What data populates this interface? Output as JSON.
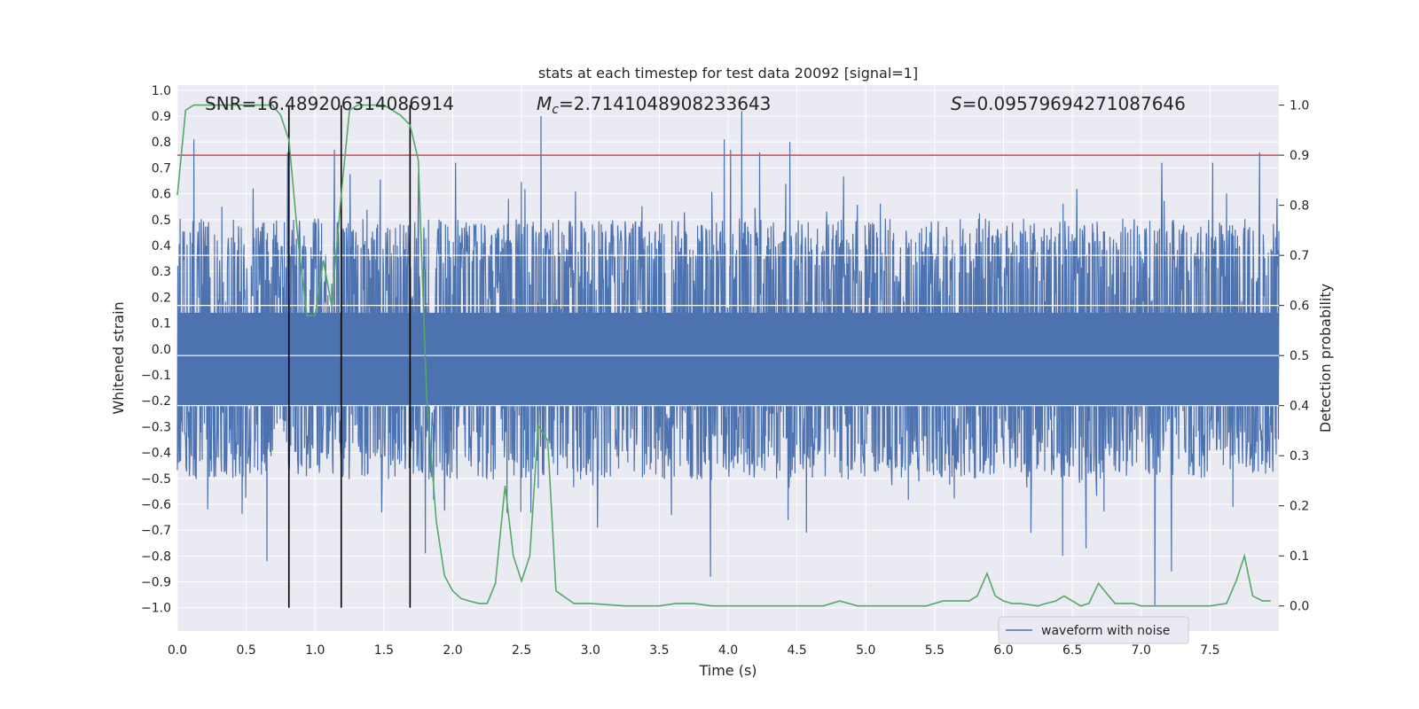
{
  "chart_data": {
    "type": "line",
    "title": "stats at each timestep for test data 20092 [signal=1]",
    "xlabel": "Time (s)",
    "ylabel": "Whitened strain",
    "ylabel_right": "Detection probability",
    "xlim": [
      0.0,
      8.0
    ],
    "ylim": [
      -1.09,
      1.02
    ],
    "ylim_right": [
      -0.05,
      1.04
    ],
    "x_ticks": [
      "0.0",
      "0.5",
      "1.0",
      "1.5",
      "2.0",
      "2.5",
      "3.0",
      "3.5",
      "4.0",
      "4.5",
      "5.0",
      "5.5",
      "6.0",
      "6.5",
      "7.0",
      "7.5"
    ],
    "y_ticks": [
      "1.0",
      "0.9",
      "0.8",
      "0.7",
      "0.6",
      "0.5",
      "0.4",
      "0.3",
      "0.2",
      "0.1",
      "0.0",
      "−0.1",
      "−0.2",
      "−0.3",
      "−0.4",
      "−0.5",
      "−0.6",
      "−0.7",
      "−0.8",
      "−0.9",
      "−1.0"
    ],
    "y_right_ticks": [
      "1.0",
      "0.9",
      "0.8",
      "0.7",
      "0.6",
      "0.5",
      "0.4",
      "0.3",
      "0.2",
      "0.1",
      "0.0"
    ],
    "annotations": {
      "snr": "SNR=16.489206314086914",
      "mc_symbol": "M",
      "mc_sub": "c",
      "mc_value": "=2.7141048908233643",
      "s_symbol": "S",
      "s_value": "=0.09579694271087646"
    },
    "legend": {
      "label": "waveform with noise",
      "loc": "lower-right"
    },
    "colors": {
      "waveform": "#4c72b0",
      "probability": "#55a868",
      "threshold": "#c44e52",
      "markers": "#000000",
      "background": "#eaeaf2",
      "grid": "#ffffff"
    },
    "threshold_right": 0.9,
    "vertical_markers_x": [
      0.81,
      1.19,
      1.69
    ],
    "waveform_seed": 20092,
    "waveform_envelope": {
      "typical_pos": 0.42,
      "typical_neg": -0.42
    },
    "waveform_spikes": [
      {
        "x": 0.12,
        "y": 0.81
      },
      {
        "x": 0.55,
        "y": 0.62
      },
      {
        "x": 0.65,
        "y": -0.82
      },
      {
        "x": 0.8,
        "y": 0.76
      },
      {
        "x": 1.14,
        "y": 0.77
      },
      {
        "x": 1.75,
        "y": 0.68
      },
      {
        "x": 1.8,
        "y": -0.79
      },
      {
        "x": 2.02,
        "y": 0.72
      },
      {
        "x": 2.64,
        "y": 0.9
      },
      {
        "x": 3.05,
        "y": -0.69
      },
      {
        "x": 3.87,
        "y": -0.88
      },
      {
        "x": 3.97,
        "y": 0.81
      },
      {
        "x": 4.1,
        "y": 0.92
      },
      {
        "x": 4.02,
        "y": 0.77
      },
      {
        "x": 4.23,
        "y": 0.76
      },
      {
        "x": 4.45,
        "y": 0.8
      },
      {
        "x": 4.57,
        "y": -0.71
      },
      {
        "x": 6.2,
        "y": -0.71
      },
      {
        "x": 6.43,
        "y": -0.8
      },
      {
        "x": 6.6,
        "y": -0.77
      },
      {
        "x": 7.1,
        "y": -0.99
      },
      {
        "x": 7.22,
        "y": -0.86
      },
      {
        "x": 7.15,
        "y": 0.72
      },
      {
        "x": 7.52,
        "y": 0.72
      },
      {
        "x": 7.86,
        "y": 0.76
      }
    ],
    "probability_x": [
      0.0,
      0.06,
      0.12,
      0.19,
      0.25,
      0.31,
      0.38,
      0.44,
      0.5,
      0.56,
      0.62,
      0.69,
      0.75,
      0.81,
      0.88,
      0.94,
      1.0,
      1.06,
      1.12,
      1.19,
      1.25,
      1.31,
      1.38,
      1.44,
      1.5,
      1.56,
      1.62,
      1.69,
      1.75,
      1.81,
      1.88,
      1.94,
      2.0,
      2.06,
      2.12,
      2.19,
      2.25,
      2.31,
      2.38,
      2.44,
      2.5,
      2.56,
      2.62,
      2.69,
      2.75,
      2.88,
      3.0,
      3.25,
      3.5,
      3.62,
      3.75,
      3.88,
      4.0,
      4.25,
      4.5,
      4.69,
      4.81,
      4.94,
      5.0,
      5.12,
      5.25,
      5.44,
      5.56,
      5.62,
      5.75,
      5.81,
      5.88,
      5.94,
      6.0,
      6.06,
      6.12,
      6.25,
      6.31,
      6.38,
      6.44,
      6.5,
      6.56,
      6.62,
      6.69,
      6.75,
      6.81,
      6.88,
      6.94,
      7.0,
      7.06,
      7.25,
      7.5,
      7.62,
      7.69,
      7.75,
      7.81,
      7.88,
      7.94
    ],
    "probability_y": [
      0.82,
      0.99,
      1.0,
      1.0,
      1.0,
      1.0,
      1.0,
      1.0,
      1.0,
      1.0,
      1.0,
      1.0,
      0.98,
      0.93,
      0.72,
      0.58,
      0.58,
      0.69,
      0.6,
      0.82,
      0.99,
      1.0,
      1.0,
      1.0,
      1.0,
      0.99,
      0.98,
      0.96,
      0.89,
      0.42,
      0.17,
      0.06,
      0.03,
      0.015,
      0.01,
      0.005,
      0.005,
      0.045,
      0.24,
      0.1,
      0.05,
      0.1,
      0.36,
      0.33,
      0.03,
      0.005,
      0.005,
      0.0,
      0.0,
      0.005,
      0.005,
      0.0,
      0.0,
      0.0,
      0.0,
      0.0,
      0.01,
      0.0,
      0.0,
      0.0,
      0.0,
      0.0,
      0.01,
      0.01,
      0.01,
      0.02,
      0.065,
      0.02,
      0.01,
      0.005,
      0.005,
      0.0,
      0.005,
      0.01,
      0.02,
      0.01,
      0.0,
      0.005,
      0.045,
      0.025,
      0.005,
      0.005,
      0.005,
      0.0,
      0.0,
      0.0,
      0.0,
      0.005,
      0.05,
      0.1,
      0.02,
      0.01,
      0.01
    ]
  }
}
